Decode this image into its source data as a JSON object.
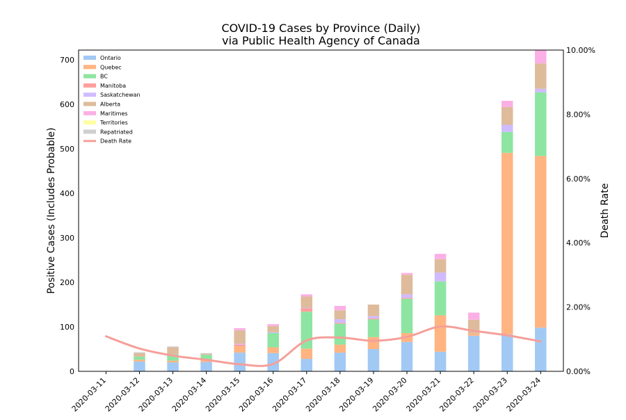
{
  "chart_data": {
    "type": "bar",
    "title": "COVID-19 Cases by Province (Daily)",
    "subtitle": "via Public Health Agency of Canada",
    "ylabel": "Positive Cases (Includes Probable)",
    "y2label": "Death Rate",
    "ylim": [
      0,
      722
    ],
    "y2lim": [
      0,
      10
    ],
    "yticks": [
      "0",
      "100",
      "200",
      "300",
      "400",
      "500",
      "600",
      "700"
    ],
    "y2ticks": [
      "0.00%",
      "2.00%",
      "4.00%",
      "6.00%",
      "8.00%",
      "10.00%"
    ],
    "legend_position": "top-left",
    "grid": false,
    "categories": [
      "2020-03-11",
      "2020-03-12",
      "2020-03-13",
      "2020-03-14",
      "2020-03-15",
      "2020-03-16",
      "2020-03-17",
      "2020-03-18",
      "2020-03-19",
      "2020-03-20",
      "2020-03-21",
      "2020-03-22",
      "2020-03-23",
      "2020-03-24"
    ],
    "series": [
      {
        "name": "Ontario",
        "color": "#a1c9f4",
        "values": [
          0,
          22,
          20,
          21,
          42,
          41,
          28,
          42,
          50,
          66,
          44,
          80,
          83,
          98
        ]
      },
      {
        "name": "Quebec",
        "color": "#ffb482",
        "values": [
          0,
          4,
          4,
          6,
          14,
          13,
          23,
          18,
          27,
          20,
          82,
          5,
          408,
          386
        ]
      },
      {
        "name": "BC",
        "color": "#8de5a1",
        "values": [
          0,
          7,
          14,
          10,
          0,
          32,
          83,
          47,
          40,
          77,
          76,
          0,
          47,
          143
        ]
      },
      {
        "name": "Manitoba",
        "color": "#ff9f9b",
        "values": [
          0,
          0,
          0,
          0,
          4,
          0,
          8,
          2,
          2,
          2,
          0,
          0,
          0,
          0
        ]
      },
      {
        "name": "Saskatchewan",
        "color": "#d0bbff",
        "values": [
          0,
          0,
          0,
          0,
          2,
          2,
          1,
          8,
          5,
          8,
          20,
          0,
          16,
          8
        ]
      },
      {
        "name": "Alberta",
        "color": "#debb9b",
        "values": [
          0,
          8,
          16,
          2,
          30,
          14,
          25,
          20,
          26,
          44,
          30,
          31,
          40,
          57
        ]
      },
      {
        "name": "Maritimes",
        "color": "#fab0e4",
        "values": [
          0,
          0,
          0,
          0,
          5,
          4,
          5,
          10,
          0,
          4,
          12,
          16,
          14,
          30
        ]
      },
      {
        "name": "Territories",
        "color": "#fffea3",
        "values": [
          0,
          0,
          0,
          0,
          0,
          0,
          0,
          0,
          0,
          0,
          0,
          0,
          0,
          0
        ]
      },
      {
        "name": "Repatriated",
        "color": "#cfcfcf",
        "values": [
          0,
          2,
          2,
          2,
          0,
          0,
          0,
          0,
          0,
          0,
          0,
          0,
          0,
          0
        ]
      }
    ],
    "line_series": {
      "name": "Death Rate",
      "color": "#f59f99",
      "values": [
        1.09,
        0.71,
        0.49,
        0.36,
        0.22,
        0.23,
        0.96,
        1.05,
        0.95,
        1.07,
        1.39,
        1.26,
        1.12,
        0.93
      ]
    }
  }
}
